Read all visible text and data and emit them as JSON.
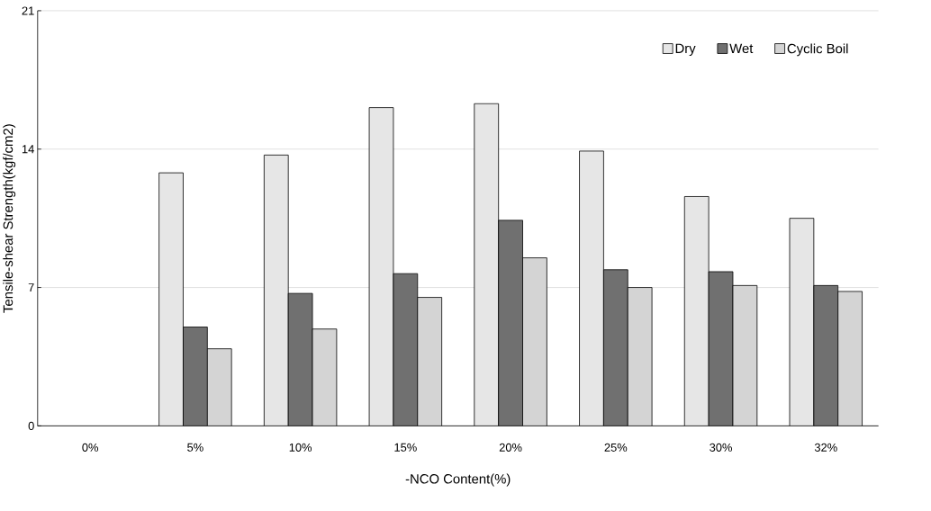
{
  "chart_data": {
    "type": "bar",
    "xlabel": "-NCO Content(%)",
    "ylabel": "Tensile-shear Strength(kgf/cm2)",
    "categories": [
      "0%",
      "5%",
      "10%",
      "15%",
      "20%",
      "25%",
      "30%",
      "32%"
    ],
    "series": [
      {
        "name": "Dry",
        "color": "#e6e6e6",
        "values": [
          null,
          12.8,
          13.7,
          16.1,
          16.3,
          13.9,
          11.6,
          10.5
        ]
      },
      {
        "name": "Wet",
        "color": "#707070",
        "values": [
          null,
          5.0,
          6.7,
          7.7,
          10.4,
          7.9,
          7.8,
          7.1
        ]
      },
      {
        "name": "Cyclic Boil",
        "color": "#d4d4d4",
        "values": [
          null,
          3.9,
          4.9,
          6.5,
          8.5,
          7.0,
          7.1,
          6.8
        ]
      }
    ],
    "ylim": [
      0,
      21
    ],
    "yticks": [
      0,
      7,
      14,
      21
    ],
    "grid": "y",
    "legend": "top right"
  }
}
